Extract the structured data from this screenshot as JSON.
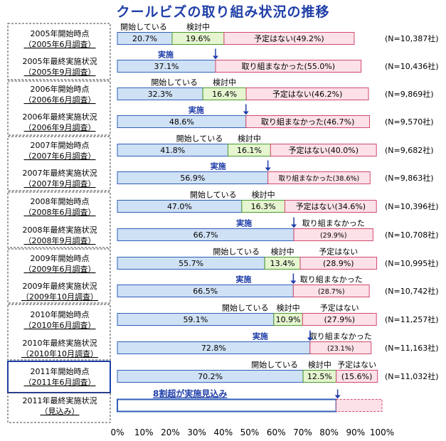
{
  "title": "クールビズの取り組み状況の推移",
  "colors": {
    "implemented": "#cfe1f5",
    "implemented_border": "#2f5fb8",
    "considering": "#e5f5cf",
    "considering_border": "#4a9a2e",
    "none": "#fde1e8",
    "none_border": "#d04a6e",
    "title": "#1f3ea8",
    "label_blue": "#1f3ea8"
  },
  "labels": {
    "started": "開始している",
    "considering": "検討中",
    "implemented": "実施",
    "none_planned": "予定はない",
    "not_done": "取り組まなかった",
    "not_done_alt": "取り組まなかった",
    "forecast_annotation": "8割超が実施見込み"
  },
  "chart_data": {
    "type": "bar",
    "orientation": "horizontal-stacked",
    "title": "クールビズの取り組み状況の推移",
    "xlim": [
      0,
      100
    ],
    "x_ticks": [
      "0%",
      "10%",
      "20%",
      "30%",
      "40%",
      "50%",
      "60%",
      "70%",
      "80%",
      "90%",
      "100%"
    ],
    "rows": [
      {
        "label1": "2005年開始時点",
        "label2": "（2005年6月調査）",
        "values": [
          20.7,
          19.6,
          49.2
        ],
        "texts": [
          "20.7%",
          "19.6%",
          "予定はない(49.2%)"
        ],
        "n": "(N=10,387社)",
        "kind": "start"
      },
      {
        "label1": "2005年最終実施状況",
        "label2": "（2005年9月調査）",
        "values": [
          37.1,
          55.0
        ],
        "texts": [
          "37.1%",
          "取り組まなかった(55.0%)"
        ],
        "n": "(N=10,436社)",
        "kind": "final"
      },
      {
        "label1": "2006年開始時点",
        "label2": "（2006年6月調査）",
        "values": [
          32.3,
          16.4,
          46.2
        ],
        "texts": [
          "32.3%",
          "16.4%",
          "予定はない(46.2%)"
        ],
        "n": "(N=9,869社)",
        "kind": "start"
      },
      {
        "label1": "2006年最終実施状況",
        "label2": "（2006年9月調査）",
        "values": [
          48.6,
          46.7
        ],
        "texts": [
          "48.6%",
          "取り組まなかった(46.7%)"
        ],
        "n": "(N=9,570社)",
        "kind": "final"
      },
      {
        "label1": "2007年開始時点",
        "label2": "（2007年6月調査）",
        "values": [
          41.8,
          16.1,
          40.0
        ],
        "texts": [
          "41.8%",
          "16.1%",
          "予定はない(40.0%)"
        ],
        "n": "(N=9,682社)",
        "kind": "start"
      },
      {
        "label1": "2007年最終実施状況",
        "label2": "（2007年9月調査）",
        "values": [
          56.9,
          38.6
        ],
        "texts": [
          "56.9%",
          "取り組まなかった(38.6%)"
        ],
        "n": "(N=9,863社)",
        "kind": "final"
      },
      {
        "label1": "2008年開始時点",
        "label2": "（2008年6月調査）",
        "values": [
          47.0,
          16.3,
          34.6
        ],
        "texts": [
          "47.0%",
          "16.3%",
          "予定はない(34.6%)"
        ],
        "n": "(N=10,396社)",
        "kind": "start"
      },
      {
        "label1": "2008年最終実施状況",
        "label2": "（2008年9月調査）",
        "values": [
          66.7,
          29.9
        ],
        "texts": [
          "66.7%",
          "(29.9%)"
        ],
        "n": "(N=10,708社)",
        "kind": "final"
      },
      {
        "label1": "2009年開始時点",
        "label2": "（2009年6月調査）",
        "values": [
          55.7,
          13.4,
          28.9
        ],
        "texts": [
          "55.7%",
          "13.4%",
          "(28.9%)"
        ],
        "n": "(N=10,995社)",
        "kind": "start"
      },
      {
        "label1": "2009年最終実施状況",
        "label2": "（2009年10月調査）",
        "values": [
          66.5,
          28.7
        ],
        "texts": [
          "66.5%",
          "(28.7%)"
        ],
        "n": "(N=10,742社)",
        "kind": "final"
      },
      {
        "label1": "2010年開始時点",
        "label2": "（2010年6月調査）",
        "values": [
          59.1,
          10.9,
          27.9
        ],
        "texts": [
          "59.1%",
          "10.9%",
          "(27.9%)"
        ],
        "n": "(N=11,257社)",
        "kind": "start"
      },
      {
        "label1": "2010年最終実施状況",
        "label2": "（2010年10月調査）",
        "values": [
          72.8,
          23.1
        ],
        "texts": [
          "72.8%",
          "(23.1%)"
        ],
        "n": "(N=11,163社)",
        "kind": "final"
      },
      {
        "label1": "2011年開始時点",
        "label2": "（2011年6月調査）",
        "values": [
          70.2,
          12.5,
          15.6
        ],
        "texts": [
          "70.2%",
          "12.5%",
          "(15.6%)"
        ],
        "n": "(N=11,032社)",
        "kind": "start"
      },
      {
        "label1": "2011年最終実施状況",
        "label2": "（見込み）",
        "values": [
          82.7,
          17.3
        ],
        "texts": [
          "",
          ""
        ],
        "n": "",
        "kind": "forecast"
      }
    ]
  }
}
